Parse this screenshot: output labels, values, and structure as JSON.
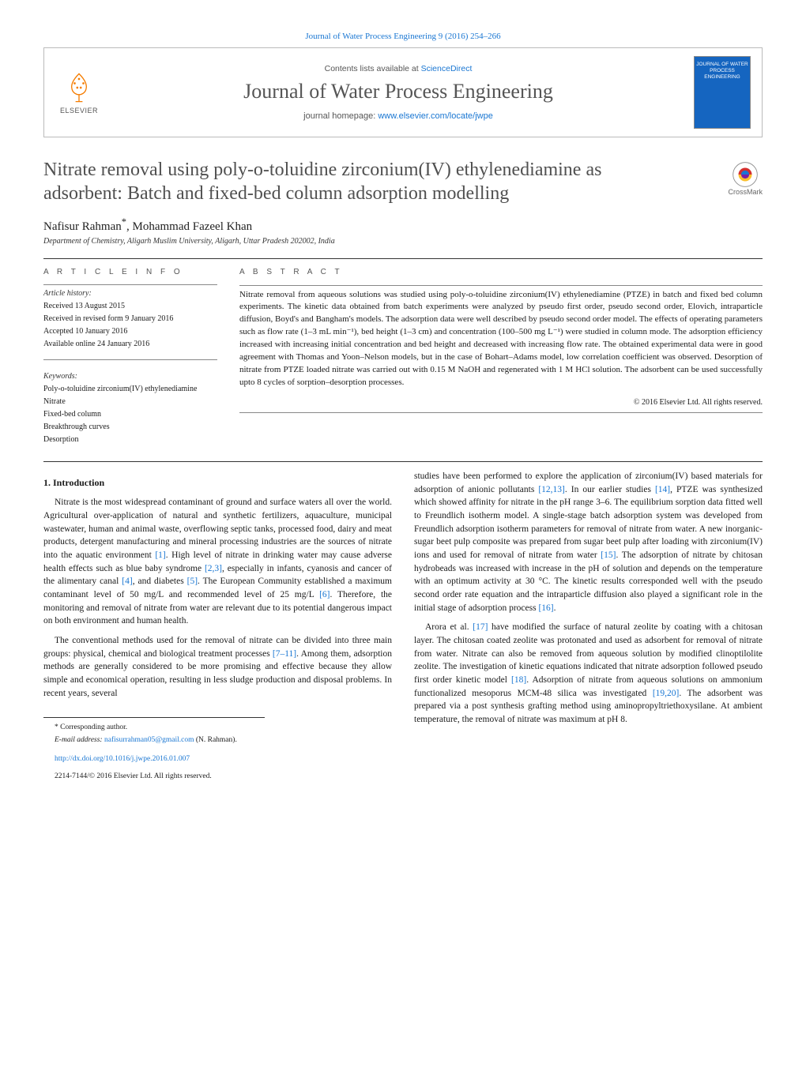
{
  "header": {
    "top_citation": "Journal of Water Process Engineering 9 (2016) 254–266",
    "contents_prefix": "Contents lists available at ",
    "contents_link": "ScienceDirect",
    "journal_name": "Journal of Water Process Engineering",
    "homepage_prefix": "journal homepage: ",
    "homepage_url": "www.elsevier.com/locate/jwpe",
    "publisher_label": "ELSEVIER",
    "cover_label": "JOURNAL OF WATER PROCESS ENGINEERING"
  },
  "crossmark_label": "CrossMark",
  "title": "Nitrate removal using poly-o-toluidine zirconium(IV) ethylenediamine as adsorbent: Batch and fixed-bed column adsorption modelling",
  "authors_line_prefix": "Nafisur Rahman",
  "authors_line_suffix": ", Mohammad Fazeel Khan",
  "affiliation": "Department of Chemistry, Aligarh Muslim University, Aligarh, Uttar Pradesh 202002, India",
  "article_info": {
    "heading": "A R T I C L E   I N F O",
    "history_label": "Article history:",
    "received": "Received 13 August 2015",
    "revised": "Received in revised form 9 January 2016",
    "accepted": "Accepted 10 January 2016",
    "online": "Available online 24 January 2016",
    "keywords_label": "Keywords:",
    "keywords": [
      "Poly-o-toluidine zirconium(IV) ethylenediamine",
      "Nitrate",
      "Fixed-bed column",
      "Breakthrough curves",
      "Desorption"
    ]
  },
  "abstract": {
    "heading": "A B S T R A C T",
    "text": "Nitrate removal from aqueous solutions was studied using poly-o-toluidine zirconium(IV) ethylenediamine (PTZE) in batch and fixed bed column experiments. The kinetic data obtained from batch experiments were analyzed by pseudo first order, pseudo second order, Elovich, intraparticle diffusion, Boyd's and Bangham's models. The adsorption data were well described by pseudo second order model. The effects of operating parameters such as flow rate (1–3 mL min⁻¹), bed height (1–3 cm) and concentration (100–500 mg L⁻¹) were studied in column mode. The adsorption efficiency increased with increasing initial concentration and bed height and decreased with increasing flow rate. The obtained experimental data were in good agreement with Thomas and Yoon–Nelson models, but in the case of Bohart–Adams model, low correlation coefficient was observed. Desorption of nitrate from PTZE loaded nitrate was carried out with 0.15 M NaOH and regenerated with 1 M HCl solution. The adsorbent can be used successfully upto 8 cycles of sorption–desorption processes.",
    "copyright": "© 2016 Elsevier Ltd. All rights reserved."
  },
  "sections": {
    "intro_heading": "1.  Introduction",
    "p1": "Nitrate is the most widespread contaminant of ground and surface waters all over the world. Agricultural over-application of natural and synthetic fertilizers, aquaculture, municipal wastewater, human and animal waste, overflowing septic tanks, processed food, dairy and meat products, detergent manufacturing and mineral processing industries are the sources of nitrate into the aquatic environment [1]. High level of nitrate in drinking water may cause adverse health effects such as blue baby syndrome [2,3], especially in infants, cyanosis and cancer of the alimentary canal [4], and diabetes [5]. The European Community established a maximum contaminant level of 50 mg/L and recommended level of 25 mg/L [6]. Therefore, the monitoring and removal of nitrate from water are relevant due to its potential dangerous impact on both environment and human health.",
    "p2": "The conventional methods used for the removal of nitrate can be divided into three main groups: physical, chemical and biological treatment processes [7–11]. Among them, adsorption methods are generally considered to be more promising and effective because they allow simple and economical operation, resulting in less sludge production and disposal problems. In recent years, several",
    "p3": "studies have been performed to explore the application of zirconium(IV) based materials for adsorption of anionic pollutants [12,13]. In our earlier studies [14], PTZE was synthesized which showed affinity for nitrate in the pH range 3–6. The equilibrium sorption data fitted well to Freundlich isotherm model. A single-stage batch adsorption system was developed from Freundlich adsorption isotherm parameters for removal of nitrate from water. A new inorganic-sugar beet pulp composite was prepared from sugar beet pulp after loading with zirconium(IV) ions and used for removal of nitrate from water [15]. The adsorption of nitrate by chitosan hydrobeads was increased with increase in the pH of solution and depends on the temperature with an optimum activity at 30 °C. The kinetic results corresponded well with the pseudo second order rate equation and the intraparticle diffusion also played a significant role in the initial stage of adsorption process [16].",
    "p4": "Arora et al. [17] have modified the surface of natural zeolite by coating with a chitosan layer. The chitosan coated zeolite was protonated and used as adsorbent for removal of nitrate from water. Nitrate can also be removed from aqueous solution by modified clinoptilolite zeolite. The investigation of kinetic equations indicated that nitrate adsorption followed pseudo first order kinetic model [18]. Adsorption of nitrate from aqueous solutions on ammonium functionalized mesoporus MCM-48 silica was investigated [19,20]. The adsorbent was prepared via a post synthesis grafting method using aminopropyltriethoxysilane. At ambient temperature, the removal of nitrate was maximum at pH 8."
  },
  "footer": {
    "corr_label": "* Corresponding author.",
    "email_label": "E-mail address: ",
    "email": "nafisurrahman05@gmail.com",
    "email_suffix": " (N. Rahman).",
    "doi_url": "http://dx.doi.org/10.1016/j.jwpe.2016.01.007",
    "issn_line": "2214-7144/© 2016 Elsevier Ltd. All rights reserved."
  },
  "colors": {
    "link": "#1976d2",
    "cover_bg": "#1565c0",
    "heading_gray": "#505050"
  }
}
